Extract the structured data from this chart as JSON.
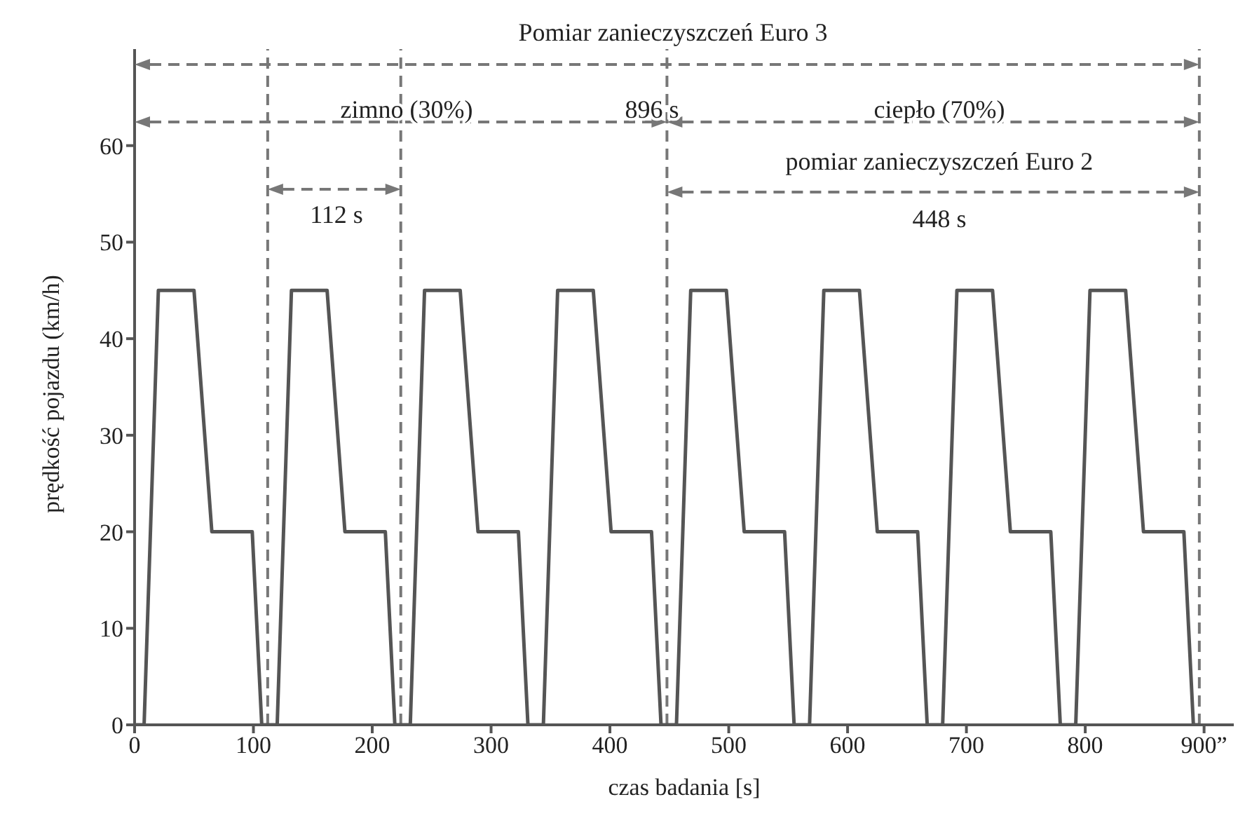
{
  "chart_data": {
    "type": "line",
    "xlabel": "czas badania [s]",
    "ylabel": "prędkość pojazdu (km/h)",
    "x": [
      0,
      8,
      20,
      50,
      65,
      99,
      107,
      112,
      120,
      132,
      162,
      177,
      211,
      219,
      224,
      232,
      244,
      274,
      289,
      323,
      331,
      336,
      344,
      356,
      386,
      401,
      435,
      443,
      448,
      456,
      468,
      498,
      513,
      547,
      555,
      560,
      568,
      580,
      610,
      625,
      659,
      667,
      672,
      680,
      692,
      722,
      737,
      771,
      779,
      784,
      792,
      804,
      834,
      849,
      883,
      891,
      896
    ],
    "series": [
      {
        "color": "#555555",
        "values": [
          0,
          0,
          45,
          45,
          20,
          20,
          0,
          0,
          0,
          45,
          45,
          20,
          20,
          0,
          0,
          0,
          45,
          45,
          20,
          20,
          0,
          0,
          0,
          45,
          45,
          20,
          20,
          0,
          0,
          0,
          45,
          45,
          20,
          20,
          0,
          0,
          0,
          45,
          45,
          20,
          20,
          0,
          0,
          0,
          45,
          45,
          20,
          20,
          0,
          0,
          0,
          45,
          45,
          20,
          20,
          0,
          0
        ]
      }
    ],
    "xlim": [
      0,
      925
    ],
    "xticks": [
      0,
      100,
      200,
      300,
      400,
      500,
      600,
      700,
      800,
      {
        "value": 900,
        "label": "900”"
      }
    ],
    "ylim": [
      0,
      70
    ],
    "yticks": [
      0,
      10,
      20,
      30,
      40,
      50,
      60
    ],
    "grid": false,
    "legend": false,
    "marker": "none",
    "line_style": "solid",
    "ref_lines": [
      {
        "axis": "x",
        "value": 112,
        "color": "#777777",
        "line_style": "dashed"
      },
      {
        "axis": "x",
        "value": 224,
        "color": "#777777",
        "line_style": "dashed"
      },
      {
        "axis": "x",
        "value": 448,
        "color": "#777777",
        "line_style": "dashed"
      },
      {
        "axis": "x",
        "value": 896,
        "color": "#777777",
        "line_style": "dashed"
      }
    ],
    "annotations": [
      "Pomiar zanieczyszczeń Euro 3",
      "zimno (30%)",
      "896 s",
      "ciepło (70%)",
      "pomiar zanieczyszczeń Euro 2",
      "112 s",
      "448 s"
    ]
  }
}
